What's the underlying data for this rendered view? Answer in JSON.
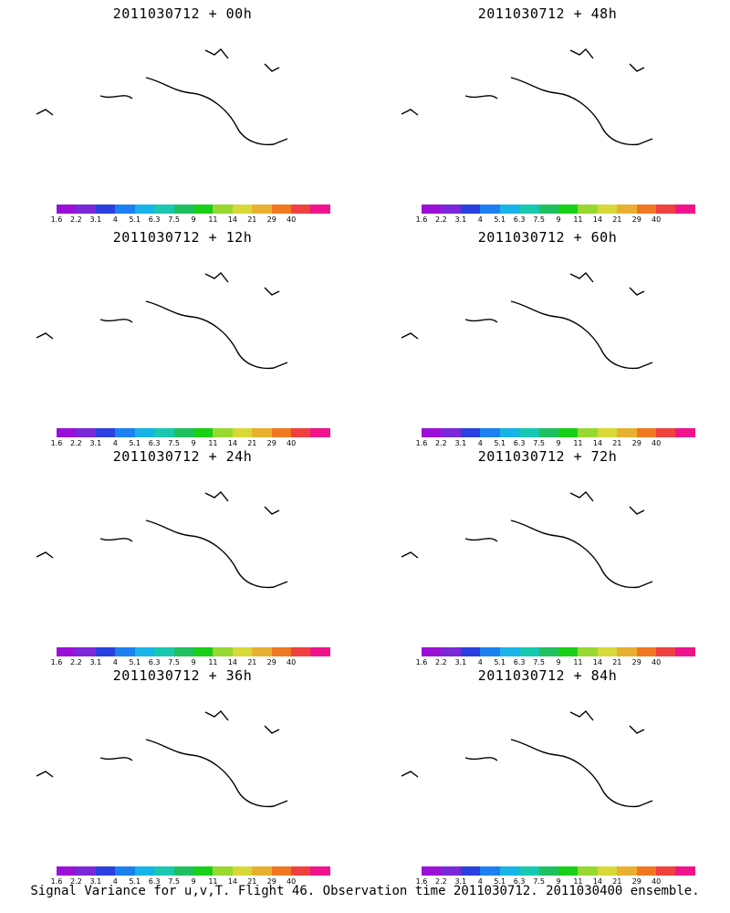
{
  "colorbar": {
    "labels": [
      "1.6",
      "2.2",
      "3.1",
      "4",
      "5.1",
      "6.3",
      "7.5",
      "9",
      "11",
      "14",
      "21",
      "29",
      "40"
    ],
    "colors": [
      "#9b10d8",
      "#7a28d8",
      "#2a40e0",
      "#1c80f0",
      "#18b4e8",
      "#18c8b0",
      "#20c060",
      "#18d018",
      "#98d830",
      "#d8d838",
      "#e8b030",
      "#f07820",
      "#f04040",
      "#f0148c"
    ]
  },
  "panels": [
    {
      "title": "2011030712 + 00h",
      "level": 0.15
    },
    {
      "title": "2011030712 + 48h",
      "level": 0.55
    },
    {
      "title": "2011030712 + 12h",
      "level": 0.3
    },
    {
      "title": "2011030712 + 60h",
      "level": 0.65
    },
    {
      "title": "2011030712 + 24h",
      "level": 0.35
    },
    {
      "title": "2011030712 + 72h",
      "level": 0.75
    },
    {
      "title": "2011030712 + 36h",
      "level": 0.45
    },
    {
      "title": "2011030712 + 84h",
      "level": 0.85
    }
  ],
  "caption": "Signal Variance for u,v,T. Flight 46. Observation time 2011030712. 2011030400 ensemble."
}
